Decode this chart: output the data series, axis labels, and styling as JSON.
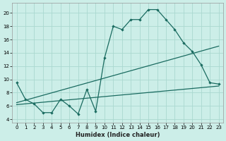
{
  "xlabel": "Humidex (Indice chaleur)",
  "x_ticks": [
    0,
    1,
    2,
    3,
    4,
    5,
    6,
    7,
    8,
    9,
    10,
    11,
    12,
    13,
    14,
    15,
    16,
    17,
    18,
    19,
    20,
    21,
    22,
    23
  ],
  "xlim": [
    -0.5,
    23.5
  ],
  "ylim": [
    3.5,
    21.5
  ],
  "y_ticks": [
    4,
    6,
    8,
    10,
    12,
    14,
    16,
    18,
    20
  ],
  "background_color": "#cceee8",
  "grid_color": "#aad8d0",
  "line_color": "#1a6b60",
  "line1_x": [
    0,
    1,
    2,
    3,
    4,
    5,
    6,
    7,
    8,
    9,
    10,
    11,
    12,
    13,
    14,
    15,
    16,
    17,
    18,
    19,
    20,
    21,
    22,
    23
  ],
  "line1_y": [
    9.5,
    7.0,
    6.3,
    5.0,
    5.0,
    7.0,
    6.0,
    4.8,
    8.5,
    5.2,
    13.2,
    18.0,
    17.5,
    19.0,
    19.0,
    20.5,
    20.5,
    19.0,
    17.5,
    15.5,
    14.2,
    12.2,
    9.5,
    9.3
  ],
  "line2_x": [
    0,
    23
  ],
  "line2_y": [
    6.5,
    15.0
  ],
  "line3_x": [
    0,
    23
  ],
  "line3_y": [
    6.2,
    9.0
  ]
}
